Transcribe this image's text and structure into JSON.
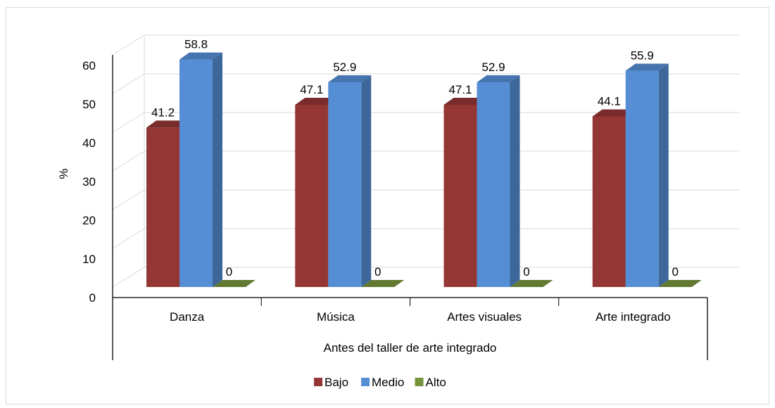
{
  "chart_data": {
    "type": "bar",
    "style": "3d-clustered-column",
    "categories": [
      "Danza",
      "Música",
      "Artes visuales",
      "Arte integrado"
    ],
    "group_label": "Antes del taller de arte integrado",
    "series": [
      {
        "name": "Bajo",
        "color": "#943634",
        "values": [
          41.2,
          47.1,
          47.1,
          44.1
        ]
      },
      {
        "name": "Medio",
        "color": "#558ED5",
        "values": [
          58.8,
          52.9,
          52.9,
          55.9
        ]
      },
      {
        "name": "Alto",
        "color": "#77933C",
        "values": [
          0,
          0,
          0,
          0
        ]
      }
    ],
    "ylabel": "%",
    "ylim": [
      0,
      60
    ],
    "yticks": [
      0,
      10,
      20,
      30,
      40,
      50,
      60
    ],
    "grid": true,
    "legend": "bottom"
  }
}
